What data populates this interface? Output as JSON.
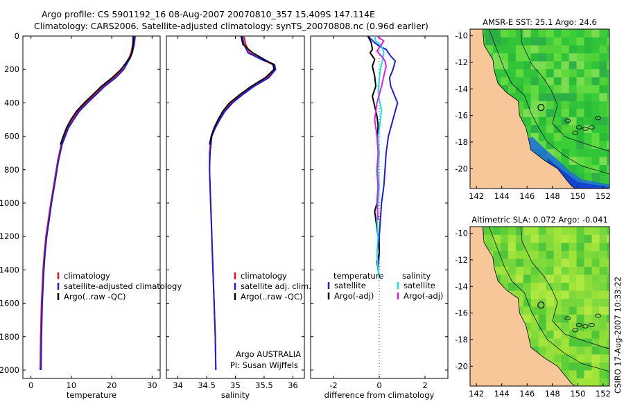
{
  "title": {
    "line1": "Argo profile: CS 5901192_16 08-Aug-2007 20070810_357 15.409S 147.114E",
    "line2": "Climatology: CARS2006. Satellite-adjusted climatology: synTS_20070808.nc (0.96d earlier)"
  },
  "side_label": "CSIRO 17-Aug-2007 10:33:22",
  "colors": {
    "clim": "#e8141a",
    "sat": "#1a1ae6",
    "argo": "#000000",
    "cyan": "#10e8e8",
    "magenta": "#e61ae6",
    "land": "#f7c79a",
    "sea_green": "#3fce3a"
  },
  "chart_data": [
    {
      "type": "line",
      "xlabel": "temperature",
      "xlim": [
        -2,
        32
      ],
      "ylim": [
        0,
        2050
      ],
      "xticks": [
        "0",
        "10",
        "20",
        "30"
      ],
      "yticks": [
        "0",
        "200",
        "400",
        "600",
        "800",
        "1000",
        "1200",
        "1400",
        "1600",
        "1800",
        "2000"
      ],
      "legend": [
        "climatology",
        "satellite-adjusted climatology",
        "Argo(..raw -QC)"
      ],
      "series": [
        {
          "name": "climatology",
          "color": "#e8141a",
          "x": [
            25.3,
            25.2,
            24.8,
            24.3,
            22.5,
            20.5,
            17.8,
            15.8,
            13.6,
            11.6,
            10.2,
            9.0,
            8.2,
            7.5,
            6.6,
            5.6,
            4.9,
            4.3,
            3.7,
            3.3,
            3.0,
            2.8,
            2.6,
            2.5,
            2.4,
            2.3
          ],
          "y": [
            0,
            50,
            100,
            130,
            200,
            250,
            300,
            350,
            400,
            450,
            500,
            550,
            600,
            650,
            750,
            900,
            1000,
            1100,
            1200,
            1300,
            1400,
            1500,
            1600,
            1700,
            1800,
            2000
          ]
        },
        {
          "name": "satellite-adjusted climatology",
          "color": "#1a1ae6",
          "x": [
            25.8,
            25.6,
            25.1,
            24.6,
            23.0,
            21.0,
            18.3,
            16.2,
            14.0,
            12.0,
            10.6,
            9.3,
            8.5,
            7.7,
            6.8,
            5.8,
            5.1,
            4.5,
            3.9,
            3.5,
            3.2,
            3.0,
            2.8,
            2.7,
            2.6,
            2.5
          ],
          "y": [
            0,
            50,
            100,
            130,
            200,
            250,
            300,
            350,
            400,
            450,
            500,
            550,
            600,
            650,
            750,
            900,
            1000,
            1100,
            1200,
            1300,
            1400,
            1500,
            1600,
            1700,
            1800,
            2000
          ]
        },
        {
          "name": "Argo(..raw -QC)",
          "color": "#000000",
          "x": [
            25.4,
            25.3,
            25.0,
            24.5,
            22.3,
            20.1,
            17.5,
            15.4,
            13.2,
            11.3,
            9.9,
            8.8,
            8.0,
            7.3
          ],
          "y": [
            0,
            50,
            100,
            130,
            200,
            250,
            300,
            350,
            400,
            450,
            500,
            550,
            600,
            650
          ]
        }
      ]
    },
    {
      "type": "line",
      "xlabel": "salinity",
      "xlim": [
        33.8,
        36.2
      ],
      "ylim": [
        0,
        2050
      ],
      "xticks": [
        "34",
        "34.5",
        "35",
        "35.5",
        "36"
      ],
      "yticks": [],
      "legend": [
        "climatology",
        "satellite adj. clim.",
        "Argo(..raw -QC)"
      ],
      "annotations": [
        "Argo AUSTRALIA",
        "PI: Susan Wijffels"
      ],
      "series": [
        {
          "name": "climatology",
          "color": "#e8141a",
          "x": [
            35.15,
            35.18,
            35.25,
            35.45,
            35.65,
            35.68,
            35.55,
            35.3,
            35.1,
            34.92,
            34.8,
            34.72,
            34.64,
            34.58,
            34.55,
            34.55,
            34.56,
            34.58,
            34.6,
            34.62,
            34.65,
            34.66
          ],
          "y": [
            0,
            50,
            100,
            140,
            170,
            200,
            250,
            300,
            350,
            400,
            450,
            500,
            550,
            600,
            700,
            800,
            900,
            1100,
            1300,
            1500,
            1800,
            2000
          ]
        },
        {
          "name": "satellite adj. clim.",
          "color": "#1a1ae6",
          "x": [
            35.12,
            35.15,
            35.22,
            35.45,
            35.68,
            35.7,
            35.58,
            35.33,
            35.13,
            34.95,
            34.82,
            34.73,
            34.65,
            34.59,
            34.56,
            34.55,
            34.56,
            34.58,
            34.6,
            34.62,
            34.65,
            34.66
          ],
          "y": [
            0,
            50,
            100,
            140,
            170,
            200,
            250,
            300,
            350,
            400,
            450,
            500,
            550,
            600,
            700,
            800,
            900,
            1100,
            1300,
            1500,
            1800,
            2000
          ]
        },
        {
          "name": "Argo(..raw -QC)",
          "color": "#000000",
          "x": [
            35.1,
            35.13,
            35.3,
            35.5,
            35.66,
            35.67,
            35.52,
            35.28,
            35.08,
            34.9,
            34.78,
            34.7,
            34.63,
            34.58,
            34.55
          ],
          "y": [
            0,
            50,
            100,
            140,
            170,
            200,
            250,
            300,
            350,
            400,
            450,
            500,
            550,
            600,
            650
          ]
        }
      ]
    },
    {
      "type": "line",
      "xlabel": "difference from climatology",
      "xlim": [
        -3,
        3
      ],
      "ylim": [
        0,
        2050
      ],
      "xticks": [
        "-2",
        "0",
        "2"
      ],
      "yticks": [],
      "legend_temperature_title": "temperature",
      "legend_salinity_title": "salinity",
      "legend": [
        "satellite",
        "Argo(-adj)",
        "satellite",
        "Argo(-adj)"
      ],
      "series": [
        {
          "name": "temperature satellite",
          "color": "#1a1ae6",
          "x": [
            -0.5,
            -0.2,
            0.0,
            0.3,
            0.5,
            0.7,
            0.6,
            0.45,
            0.5,
            0.8,
            0.7,
            0.6,
            0.5,
            0.4,
            0.3,
            0.25,
            0.2,
            0.1,
            0.05,
            0.0,
            0.0,
            -0.05,
            0.0
          ],
          "y": [
            0,
            40,
            60,
            80,
            120,
            150,
            200,
            250,
            300,
            400,
            450,
            500,
            550,
            600,
            700,
            800,
            900,
            1000,
            1100,
            1200,
            1300,
            1400,
            1450
          ]
        },
        {
          "name": "temperature Argo(-adj)",
          "color": "#000000",
          "x": [
            -0.5,
            -0.35,
            -0.3,
            -0.4,
            -0.2,
            -0.3,
            -0.2,
            -0.15,
            -0.3,
            -0.2,
            -0.1,
            -0.05,
            -0.1,
            0.0,
            -0.1,
            -0.05,
            -0.1,
            -0.2,
            -0.15,
            -0.05,
            0.0,
            -0.1,
            0.0
          ],
          "y": [
            0,
            40,
            80,
            100,
            140,
            180,
            240,
            300,
            360,
            420,
            480,
            540,
            600,
            700,
            800,
            900,
            1000,
            1050,
            1100,
            1200,
            1300,
            1350,
            1450
          ]
        },
        {
          "name": "salinity satellite",
          "color": "#10e8e8",
          "x": [
            -0.2,
            -0.15,
            0.1,
            0.2,
            0.15,
            0.05,
            0.0,
            -0.05,
            0.0,
            0.1,
            0.05,
            0.0,
            -0.05,
            0.0,
            -0.05,
            0.0,
            -0.05,
            -0.1,
            -0.05,
            -0.1,
            -0.05,
            0.0
          ],
          "y": [
            0,
            30,
            60,
            100,
            140,
            200,
            260,
            320,
            380,
            440,
            500,
            560,
            620,
            700,
            800,
            900,
            1000,
            1100,
            1200,
            1300,
            1400,
            1450
          ]
        },
        {
          "name": "salinity Argo(-adj)",
          "color": "#e61ae6",
          "x": [
            -0.1,
            0.2,
            0.05,
            -0.1,
            0.1,
            0.25,
            0.3,
            0.2,
            0.1,
            -0.1,
            -0.2,
            -0.1,
            -0.05,
            -0.1,
            -0.05,
            -0.1,
            -0.05
          ],
          "y": [
            0,
            30,
            60,
            90,
            120,
            150,
            180,
            240,
            300,
            400,
            500,
            600,
            700,
            800,
            900,
            1000,
            1100
          ]
        }
      ]
    },
    {
      "type": "heatmap",
      "title": "AMSR-E SST: 25.1 Argo: 24.6",
      "xticks": [
        "142",
        "144",
        "146",
        "148",
        "150",
        "152"
      ],
      "yticks": [
        "-10",
        "-12",
        "-14",
        "-16",
        "-18",
        "-20"
      ],
      "xlim": [
        141.5,
        152.5
      ],
      "ylim": [
        -21.5,
        -9.5
      ],
      "marker": {
        "lon": 147.1,
        "lat": -15.4
      }
    },
    {
      "type": "heatmap",
      "title": "Altimetric SLA: 0.072 Argo: -0.041",
      "xticks": [
        "142",
        "144",
        "146",
        "148",
        "150",
        "152"
      ],
      "yticks": [
        "-10",
        "-12",
        "-14",
        "-16",
        "-18",
        "-20"
      ],
      "xlim": [
        141.5,
        152.5
      ],
      "ylim": [
        -21.5,
        -9.5
      ],
      "marker": {
        "lon": 147.1,
        "lat": -15.4
      }
    }
  ]
}
